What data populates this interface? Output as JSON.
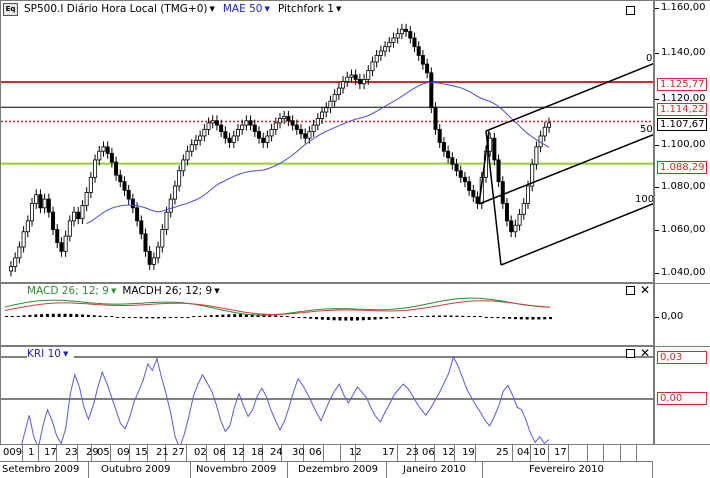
{
  "chart_data": [
    {
      "type": "candlestick",
      "instrument": "SP500.I",
      "title": "Diário",
      "timezone_label": "Hora Local (TMG+0)",
      "ylim": [
        1033,
        1163
      ],
      "yticks": [
        "1.160,00",
        "1.140,00",
        "1.120,00",
        "1.100,00",
        "1.080,00",
        "1.060,00",
        "1.040,00"
      ],
      "closes": [
        1041,
        1045,
        1050,
        1057,
        1062,
        1070,
        1074,
        1068,
        1072,
        1066,
        1058,
        1052,
        1048,
        1055,
        1062,
        1066,
        1063,
        1069,
        1075,
        1082,
        1090,
        1094,
        1096,
        1093,
        1089,
        1083,
        1080,
        1076,
        1072,
        1068,
        1062,
        1056,
        1048,
        1042,
        1045,
        1050,
        1058,
        1066,
        1072,
        1078,
        1085,
        1090,
        1094,
        1097,
        1099,
        1101,
        1104,
        1107,
        1108,
        1106,
        1103,
        1100,
        1098,
        1101,
        1104,
        1106,
        1108,
        1106,
        1103,
        1100,
        1098,
        1101,
        1104,
        1107,
        1109,
        1110,
        1108,
        1106,
        1104,
        1102,
        1100,
        1103,
        1106,
        1109,
        1112,
        1114,
        1117,
        1120,
        1123,
        1126,
        1128,
        1129,
        1127,
        1125,
        1127,
        1131,
        1135,
        1138,
        1140,
        1142,
        1144,
        1146,
        1148,
        1150,
        1149,
        1146,
        1142,
        1138,
        1134,
        1130,
        1114,
        1104,
        1098,
        1094,
        1091,
        1088,
        1085,
        1082,
        1080,
        1076,
        1073,
        1070,
        1082,
        1094,
        1100,
        1090,
        1080,
        1070,
        1062,
        1057,
        1060,
        1065,
        1070,
        1078,
        1088,
        1096,
        1101,
        1105,
        1107
      ],
      "series": [
        {
          "name": "MAE 50",
          "color": "#4a4ae0"
        },
        {
          "name": "Pitchfork 1",
          "color": "#000000"
        }
      ],
      "pitchfork_labels": [
        "0",
        "50",
        "100"
      ],
      "price_levels": [
        {
          "label": "1.125,77",
          "value": 1125.77,
          "color": "#d42a2a",
          "style": "solid"
        },
        {
          "label": "1.114,22",
          "value": 1114.22,
          "color": "#d42a2a",
          "style": "solid"
        },
        {
          "label": "1.107,67",
          "value": 1107.67,
          "color": "#d42a2a",
          "style": "dotted"
        },
        {
          "label": "1.088,29",
          "value": 1088.29,
          "color": "#d42a2a",
          "style": "solid"
        }
      ],
      "line_colors": {
        "level_red": "#d42a2a",
        "level_green": "#9acd32",
        "level_black": "#000000"
      }
    },
    {
      "type": "bar",
      "name": "MACD 26; 12; 9",
      "signal_name": "MACDH 26; 12; 9",
      "yticks": [
        "0,00"
      ],
      "colors": {
        "macd": "#2e8b2e",
        "signal": "#d43c3c",
        "hist": "#000000"
      }
    },
    {
      "type": "line",
      "name": "KRI 10",
      "yticks": [
        "0,00"
      ],
      "highlight_value": "0,03",
      "color": "#5a5ae6",
      "values": [
        -3.5,
        -4.2,
        -3.8,
        -2.5,
        -1.2,
        -2.8,
        -3.6,
        -2.0,
        -0.8,
        -1.6,
        -2.7,
        -3.3,
        -2.2,
        0.4,
        1.8,
        0.9,
        -0.6,
        -1.5,
        -0.5,
        0.8,
        2.0,
        1.2,
        0.2,
        -0.8,
        -1.8,
        -2.2,
        -1.4,
        -0.2,
        0.6,
        1.4,
        2.6,
        2.1,
        3.0,
        1.6,
        0.4,
        -1.0,
        -2.8,
        -3.6,
        -2.6,
        -1.3,
        0.2,
        1.1,
        1.8,
        1.2,
        0.6,
        -0.4,
        -1.6,
        -2.4,
        -2.0,
        -0.6,
        0.4,
        -0.5,
        -1.3,
        -0.8,
        0.2,
        0.8,
        0.2,
        -0.8,
        -1.6,
        -2.3,
        -1.6,
        -0.6,
        0.6,
        1.5,
        1.0,
        0.4,
        -0.3,
        -1.0,
        -1.6,
        -0.8,
        0.0,
        0.6,
        1.1,
        0.3,
        -0.3,
        0.3,
        0.9,
        0.5,
        0.1,
        -0.7,
        -1.3,
        -1.7,
        -1.0,
        -0.4,
        0.3,
        0.7,
        1.1,
        0.8,
        0.3,
        -0.3,
        -0.8,
        -1.2,
        -0.7,
        -0.1,
        0.5,
        1.2,
        1.9,
        3.1,
        2.5,
        1.6,
        0.7,
        0.1,
        -0.5,
        -1.0,
        -1.6,
        -2.0,
        -1.3,
        -0.5,
        0.6,
        1.0,
        0.3,
        -0.6,
        -0.8,
        -1.6,
        -2.6,
        -3.2,
        -2.8,
        -3.3,
        -3.0
      ]
    }
  ],
  "header": {
    "logo": "Eq",
    "instrument_label": "SP500.I Diário Hora Local (TMG+0)",
    "indicator_label": "MAE 50",
    "pitchfork_label": "Pitchfork 1"
  },
  "macd_header": {
    "macd_label": "MACD 26; 12; 9",
    "macdh_label": "MACDH 26; 12; 9"
  },
  "kri_header": {
    "kri_label": "KRI 10"
  },
  "axis": {
    "days": [
      "009",
      "1",
      "17",
      "23",
      "29",
      "05",
      "09",
      "15",
      "21",
      "27",
      "02",
      "06",
      "12",
      "18",
      "24",
      "30",
      "06",
      "12",
      "17",
      "23",
      "06",
      "12",
      "19",
      "25",
      "04",
      "10",
      "17"
    ],
    "months": [
      "Setembro 2009",
      "Outubro 2009",
      "Novembro 2009",
      "Dezembro 2009",
      "Janeiro 2010",
      "Fevereiro 2010"
    ]
  }
}
